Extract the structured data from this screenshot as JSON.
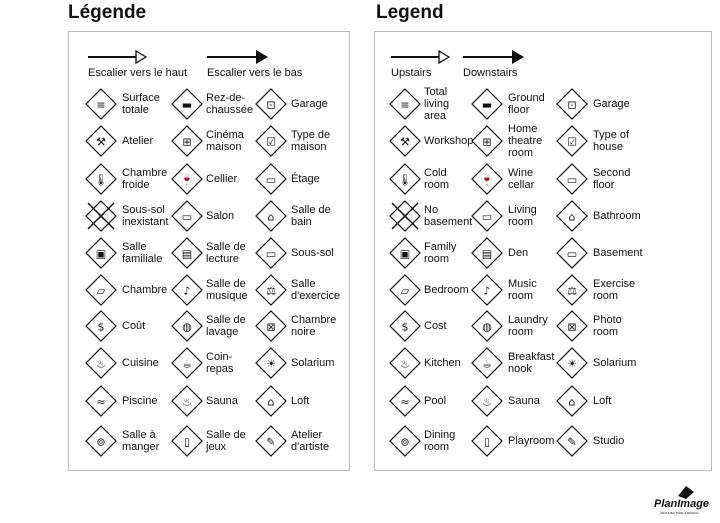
{
  "fr": {
    "title": "Légende",
    "up_label": "Escalier vers le haut",
    "down_label": "Escalier vers le bas",
    "items": [
      [
        "Surface\ntotale",
        "Rez-de-\nchaussée",
        "Garage"
      ],
      [
        "Atelier",
        "Cinéma\nmaison",
        "Type de\nmaison"
      ],
      [
        "Chambre\nfroide",
        "Cellier",
        "Étage"
      ],
      [
        "Sous-sol\ninexistant",
        "Salon",
        "Salle de\nbain"
      ],
      [
        "Salle\nfamiliale",
        "Salle de\nlecture",
        "Sous-sol"
      ],
      [
        "Chambre",
        "Salle de\nmusique",
        "Salle\nd'exercice"
      ],
      [
        "Coût",
        "Salle de\nlavage",
        "Chambre\nnoire"
      ],
      [
        "Cuisine",
        "Coin-\nrepas",
        "Solarium"
      ],
      [
        "Piscine",
        "Sauna",
        "Loft"
      ],
      [
        "Salle à\nmanger",
        "Salle de\njeux",
        "Atelier\nd'artiste"
      ]
    ]
  },
  "en": {
    "title": "Legend",
    "up_label": "Upstairs",
    "down_label": "Downstairs",
    "items": [
      [
        "Total\nliving\narea",
        "Ground\nfloor",
        "Garage"
      ],
      [
        "Workshop",
        "Home\ntheatre\nroom",
        "Type of\nhouse"
      ],
      [
        "Cold\nroom",
        "Wine\ncellar",
        "Second\nfloor"
      ],
      [
        "No\nbasement",
        "Living\nroom",
        "Bathroom"
      ],
      [
        "Family\nroom",
        "Den",
        "Basement"
      ],
      [
        "Bedroom",
        "Music\nroom",
        "Exercise\nroom"
      ],
      [
        "Cost",
        "Laundry\nroom",
        "Photo\nroom"
      ],
      [
        "Kitchen",
        "Breakfast\nnook",
        "Solarium"
      ],
      [
        "Pool",
        "Sauna",
        "Loft"
      ],
      [
        "Dining\nroom",
        "Playroom",
        "Studio"
      ]
    ]
  },
  "icons": [
    [
      "total-area-icon",
      "ground-floor-icon",
      "garage-icon"
    ],
    [
      "hammer-icon",
      "theatre-icon",
      "house-type-icon"
    ],
    [
      "thermometer-icon",
      "wine-icon",
      "second-floor-icon"
    ],
    [
      "no-basement-icon",
      "sofa-icon",
      "sink-icon"
    ],
    [
      "tv-icon",
      "book-icon",
      "basement-icon"
    ],
    [
      "bed-icon",
      "music-note-icon",
      "dumbbell-icon"
    ],
    [
      "dollar-icon",
      "washer-icon",
      "camera-icon"
    ],
    [
      "pot-icon",
      "coffee-icon",
      "sun-icon"
    ],
    [
      "pool-icon",
      "sauna-icon",
      "loft-icon"
    ],
    [
      "plate-icon",
      "game-icon",
      "palette-icon"
    ]
  ],
  "glyphs": [
    [
      "≡",
      "▬",
      "⊡"
    ],
    [
      "⚒",
      "⊞",
      "☑"
    ],
    [
      "🌡",
      "🍷",
      "▭"
    ],
    [
      "✕",
      "▭",
      "⌂"
    ],
    [
      "▣",
      "▤",
      "▭"
    ],
    [
      "▱",
      "♪",
      "⚖"
    ],
    [
      "$",
      "◍",
      "⊠"
    ],
    [
      "♨",
      "☕",
      "☀"
    ],
    [
      "≈",
      "♨",
      "⌂"
    ],
    [
      "⊚",
      "▯",
      "✎"
    ]
  ],
  "logo": {
    "text": "PlanImage",
    "sub": "ARCHITECTURE & DESIGN"
  }
}
